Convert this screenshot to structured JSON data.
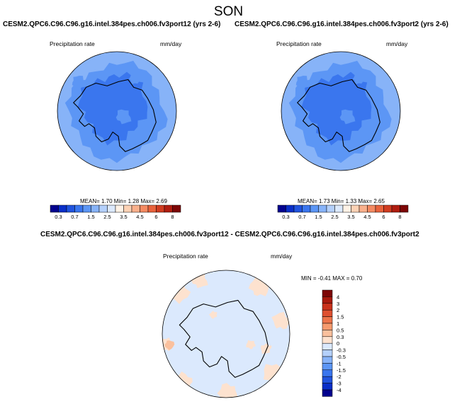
{
  "title": "SON",
  "panels": [
    {
      "case": "CESM2.QPC6.C96.C96.g16.intel.384pes.ch006.fv3port12 (yrs 2-6)",
      "variable": "Precipitation rate",
      "units": "mm/day",
      "stats": "MEAN=  1.70  Min=   1.28  Max=  2.69"
    },
    {
      "case": "CESM2.QPC6.C96.C96.g16.intel.384pes.ch006.fv3port2 (yrs 2-6)",
      "variable": "Precipitation rate",
      "units": "mm/day",
      "stats": "MEAN=  1.73  Min=   1.33  Max=  2.65"
    }
  ],
  "abs_colorbar": {
    "labels": [
      "0.3",
      "0.7",
      "1.5",
      "2.5",
      "3.5",
      "4.5",
      "6",
      "8"
    ],
    "colors": [
      "#03028f",
      "#0a2fc8",
      "#2154de",
      "#3a76ee",
      "#5c96f5",
      "#87b3f8",
      "#b4d0fb",
      "#dce9fd",
      "#fff2e6",
      "#fcd2b5",
      "#f9b08c",
      "#f48a62",
      "#e8623c",
      "#d03c20",
      "#b01d10",
      "#7d0606"
    ]
  },
  "diff_panel": {
    "case": "CESM2.QPC6.C96.C96.g16.intel.384pes.ch006.fv3port12 - CESM2.QPC6.C96.C96.g16.intel.384pes.ch006.fv3port2",
    "variable": "Precipitation rate",
    "units": "mm/day",
    "stats": "MIN = -0.41  MAX =  0.70"
  },
  "diff_colorbar": {
    "labels": [
      "4",
      "3",
      "2",
      "1.5",
      "1",
      "0.5",
      "0.3",
      "0",
      "-0.3",
      "-0.5",
      "-1",
      "-1.5",
      "-2",
      "-3",
      "-4"
    ],
    "colors": [
      "#7d0606",
      "#a81a0e",
      "#c9321c",
      "#de5030",
      "#ec744a",
      "#f59a6e",
      "#fac09d",
      "#fde2cf",
      "#dbe9fd",
      "#b4d0fb",
      "#87b3f8",
      "#5c96f5",
      "#3a76ee",
      "#2154de",
      "#0a2fc8",
      "#03028f"
    ]
  },
  "map_colors": {
    "ocean_light": "#87b3f8",
    "ocean_mid": "#5c96f5",
    "land_dark": "#3a76ee",
    "diff_base": "#dbe9fd",
    "diff_pos": "#fde2cf",
    "diff_pos2": "#fac09d"
  }
}
